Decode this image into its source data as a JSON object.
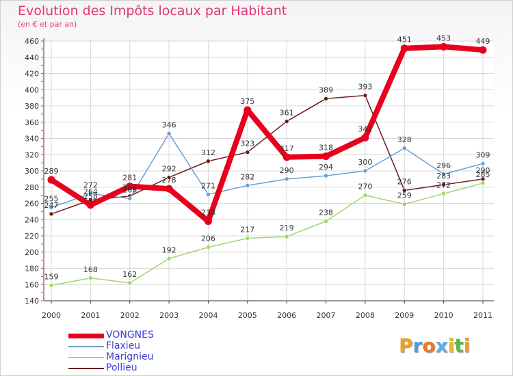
{
  "chart_data": {
    "type": "line",
    "title": "Evolution des Impôts locaux par Habitant",
    "subtitle": "(en € et par an)",
    "categories": [
      "2000",
      "2001",
      "2002",
      "2003",
      "2004",
      "2005",
      "2006",
      "2007",
      "2008",
      "2009",
      "2010",
      "2011"
    ],
    "ylim": [
      140,
      460
    ],
    "yticks": [
      140,
      160,
      180,
      200,
      220,
      240,
      260,
      280,
      300,
      320,
      340,
      360,
      380,
      400,
      420,
      440,
      460
    ],
    "grid": true,
    "legend_position": "bottom-left",
    "series": [
      {
        "name": "Pollieu",
        "color": "#6b1a1a",
        "width": 1.5,
        "values": [
          247,
          264,
          269,
          292,
          312,
          323,
          361,
          389,
          393,
          276,
          283,
          290
        ],
        "labels": [
          "247",
          "264",
          "269",
          "292",
          "312",
          "323",
          "361",
          "389",
          "393",
          "276",
          "283",
          "290"
        ]
      },
      {
        "name": "Marignieu",
        "color": "#9fd66a",
        "width": 1.5,
        "values": [
          159,
          168,
          162,
          192,
          206,
          217,
          219,
          238,
          270,
          259,
          272,
          285
        ],
        "labels": [
          "159",
          "168",
          "162",
          "192",
          "206",
          "217",
          "219",
          "238",
          "270",
          "259",
          "272",
          "285"
        ]
      },
      {
        "name": "Flaxieu",
        "color": "#6a9ecf",
        "width": 1.5,
        "values": [
          255,
          272,
          266,
          346,
          271,
          282,
          290,
          294,
          300,
          328,
          296,
          309
        ],
        "labels": [
          "255",
          "272",
          "266",
          "346",
          "271",
          "282",
          "290",
          "294",
          "300",
          "328",
          "296",
          "309"
        ]
      },
      {
        "name": "VONGNES",
        "color": "#e8001c",
        "width": 8,
        "values": [
          289,
          258,
          281,
          278,
          238,
          375,
          317,
          318,
          341,
          451,
          453,
          449
        ],
        "labels": [
          "289",
          "258",
          "281",
          "278",
          "238",
          "375",
          "317",
          "318",
          "341",
          "451",
          "453",
          "449"
        ]
      }
    ]
  },
  "legend": {
    "items": [
      {
        "name": "VONGNES",
        "color": "#e8001c"
      },
      {
        "name": "Flaxieu",
        "color": "#6a9ecf"
      },
      {
        "name": "Marignieu",
        "color": "#9fd66a"
      },
      {
        "name": "Pollieu",
        "color": "#6b1a1a"
      }
    ]
  },
  "logo": {
    "letters": [
      "P",
      "r",
      "o",
      "x",
      "i",
      "t",
      "i"
    ],
    "colors": [
      "#f0a020",
      "#4aa0e0",
      "#f07820",
      "#5bb0e8",
      "#f0b820",
      "#58b848",
      "#f0a020"
    ]
  }
}
